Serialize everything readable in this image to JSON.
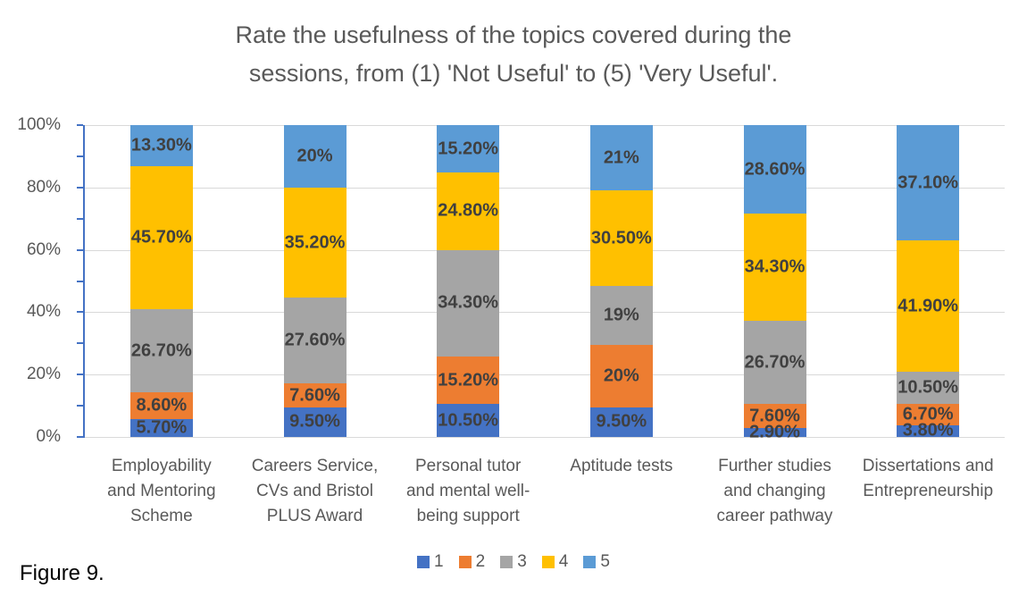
{
  "title": {
    "line1": "Rate the usefulness of the topics covered during the",
    "line2": "sessions, from (1) 'Not Useful' to (5) 'Very Useful'."
  },
  "figure_caption": "Figure 9.",
  "colors": {
    "axis": "#4472C4",
    "gridline": "#D9D9D9",
    "text_gray": "#595959",
    "data_label": "#404040",
    "series_1": "#4472C4",
    "series_2": "#ED7D31",
    "series_3": "#A5A5A5",
    "series_4": "#FFC000",
    "series_5": "#5B9BD5"
  },
  "chart_data": {
    "type": "bar",
    "stacked": true,
    "percent_axis": true,
    "title": "Rate the usefulness of the topics covered during the sessions, from (1) 'Not Useful' to (5) 'Very Useful'.",
    "categories": [
      "Employability and Mentoring Scheme",
      "Careers Service, CVs and Bristol PLUS Award",
      "Personal tutor and mental well-being support",
      "Aptitude tests",
      "Further studies and changing career pathway",
      "Dissertations and Entrepreneurship"
    ],
    "categories_lines": [
      [
        "Employability",
        "and Mentoring",
        "Scheme"
      ],
      [
        "Careers Service,",
        "CVs and Bristol",
        "PLUS Award"
      ],
      [
        "Personal tutor",
        "and mental well-",
        "being support"
      ],
      [
        "Aptitude tests"
      ],
      [
        "Further studies",
        "and changing",
        "career pathway"
      ],
      [
        "Dissertations and",
        "Entrepreneurship"
      ]
    ],
    "series": [
      {
        "name": "1",
        "color": "#4472C4",
        "values": [
          5.7,
          9.5,
          10.5,
          9.5,
          2.9,
          3.8
        ],
        "labels": [
          "5.70%",
          "9.50%",
          "10.50%",
          "9.50%",
          "2.90%",
          "3.80%"
        ]
      },
      {
        "name": "2",
        "color": "#ED7D31",
        "values": [
          8.6,
          7.6,
          15.2,
          20,
          7.6,
          6.7
        ],
        "labels": [
          "8.60%",
          "7.60%",
          "15.20%",
          "20%",
          "7.60%",
          "6.70%"
        ]
      },
      {
        "name": "3",
        "color": "#A5A5A5",
        "values": [
          26.7,
          27.6,
          34.3,
          19,
          26.7,
          10.5
        ],
        "labels": [
          "26.70%",
          "27.60%",
          "34.30%",
          "19%",
          "26.70%",
          "10.50%"
        ]
      },
      {
        "name": "4",
        "color": "#FFC000",
        "values": [
          45.7,
          35.2,
          24.8,
          30.5,
          34.3,
          41.9
        ],
        "labels": [
          "45.70%",
          "35.20%",
          "24.80%",
          "30.50%",
          "34.30%",
          "41.90%"
        ]
      },
      {
        "name": "5",
        "color": "#5B9BD5",
        "values": [
          13.3,
          20,
          15.2,
          21,
          28.6,
          37.1
        ],
        "labels": [
          "13.30%",
          "20%",
          "15.20%",
          "21%",
          "28.60%",
          "37.10%"
        ]
      }
    ],
    "y_axis": {
      "min": 0,
      "max": 100,
      "tick_labels": [
        "0%",
        "20%",
        "40%",
        "60%",
        "80%",
        "100%"
      ],
      "major_step": 20,
      "minor_step": 10
    },
    "legend": {
      "position": "bottom",
      "entries": [
        "1",
        "2",
        "3",
        "4",
        "5"
      ]
    },
    "grid": "horizontal-major"
  }
}
